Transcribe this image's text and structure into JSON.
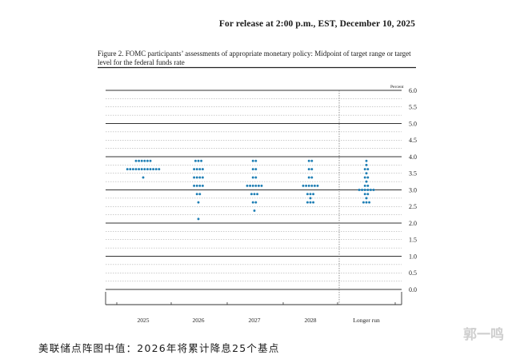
{
  "header": {
    "release": "For release at 2:00 p.m., EST, December 10, 2025",
    "figure_title": "Figure 2. FOMC participants’ assessments of appropriate monetary policy: Midpoint of target range or target level for the federal funds rate"
  },
  "caption": "美联储点阵图中值：2026年将累计降息25个基点",
  "watermark": "郭一鸣",
  "chart_data": {
    "type": "scatter",
    "title": "",
    "ylabel": "Percent",
    "ylim": [
      0,
      6.0
    ],
    "yticks": [
      "6.0",
      "5.5",
      "5.0",
      "4.5",
      "4.0",
      "3.5",
      "3.0",
      "2.5",
      "2.0",
      "1.5",
      "1.0",
      "0.5",
      "0.0"
    ],
    "categories": [
      "2025",
      "2026",
      "2027",
      "2028",
      "Longer run"
    ],
    "dot_color": "#1f7fb5",
    "dots": [
      {
        "category": "2025",
        "points": [
          {
            "y": 3.875,
            "n": 6
          },
          {
            "y": 3.625,
            "n": 12
          },
          {
            "y": 3.375,
            "n": 1
          }
        ]
      },
      {
        "category": "2026",
        "points": [
          {
            "y": 3.875,
            "n": 3
          },
          {
            "y": 3.625,
            "n": 4
          },
          {
            "y": 3.375,
            "n": 4
          },
          {
            "y": 3.125,
            "n": 4
          },
          {
            "y": 2.875,
            "n": 2
          },
          {
            "y": 2.625,
            "n": 1
          },
          {
            "y": 2.125,
            "n": 1
          }
        ]
      },
      {
        "category": "2027",
        "points": [
          {
            "y": 3.875,
            "n": 2
          },
          {
            "y": 3.625,
            "n": 2
          },
          {
            "y": 3.375,
            "n": 2
          },
          {
            "y": 3.125,
            "n": 6
          },
          {
            "y": 2.875,
            "n": 3
          },
          {
            "y": 2.625,
            "n": 2
          },
          {
            "y": 2.375,
            "n": 1
          }
        ]
      },
      {
        "category": "2028",
        "points": [
          {
            "y": 3.875,
            "n": 2
          },
          {
            "y": 3.625,
            "n": 2
          },
          {
            "y": 3.375,
            "n": 2
          },
          {
            "y": 3.125,
            "n": 6
          },
          {
            "y": 2.875,
            "n": 3
          },
          {
            "y": 2.75,
            "n": 1
          },
          {
            "y": 2.625,
            "n": 3
          }
        ]
      },
      {
        "category": "Longer run",
        "points": [
          {
            "y": 3.875,
            "n": 1
          },
          {
            "y": 3.75,
            "n": 1
          },
          {
            "y": 3.625,
            "n": 2
          },
          {
            "y": 3.5,
            "n": 1
          },
          {
            "y": 3.375,
            "n": 2
          },
          {
            "y": 3.25,
            "n": 1
          },
          {
            "y": 3.125,
            "n": 2
          },
          {
            "y": 3.0,
            "n": 6
          },
          {
            "y": 2.875,
            "n": 2
          },
          {
            "y": 2.75,
            "n": 1
          },
          {
            "y": 2.625,
            "n": 3
          }
        ]
      }
    ]
  }
}
